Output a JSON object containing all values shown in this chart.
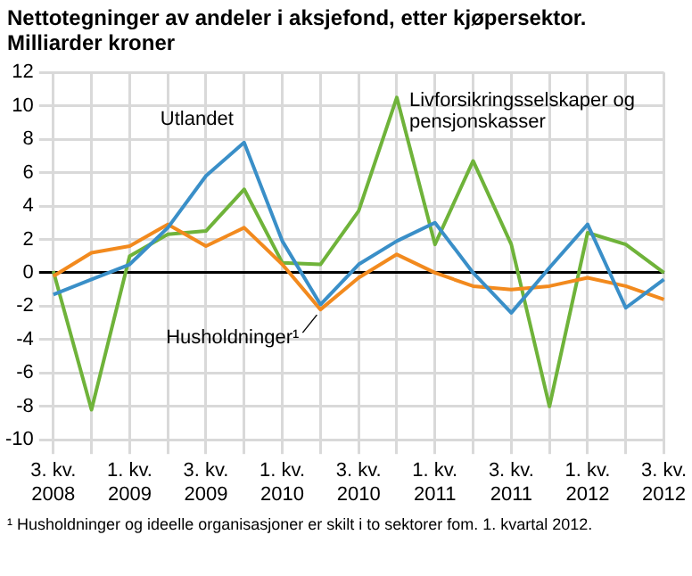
{
  "chart_data": {
    "type": "line",
    "title": "Nettotegninger av andeler i aksjefond, etter kjøpersektor. Milliarder kroner",
    "categories": [
      "3. kv. 2008",
      null,
      "1. kv. 2009",
      null,
      "3. kv. 2009",
      null,
      "1. kv. 2010",
      null,
      "3. kv. 2010",
      null,
      "1. kv. 2011",
      null,
      "3. kv. 2011",
      null,
      "1. kv. 2012",
      null,
      "3. kv. 2012"
    ],
    "series": [
      {
        "name": "Utlandet",
        "color": "#3a8fc8",
        "values": [
          -1.3,
          -0.4,
          0.5,
          2.7,
          5.8,
          7.8,
          1.9,
          -1.9,
          0.5,
          1.9,
          3.0,
          0,
          -2.4,
          0.3,
          2.9,
          -2.1,
          -0.4
        ]
      },
      {
        "name": "Husholdninger¹",
        "color": "#f28a1e",
        "values": [
          -0.2,
          1.2,
          1.6,
          2.9,
          1.6,
          2.7,
          0.5,
          -2.2,
          -0.3,
          1.1,
          0,
          -0.8,
          -1.0,
          -0.8,
          -0.3,
          -0.8,
          -1.6
        ]
      },
      {
        "name": "Livforsikringsselskaper og pensjonskasser",
        "color": "#6fb33a",
        "values": [
          0.1,
          -8.2,
          1.0,
          2.3,
          2.5,
          5.0,
          0.6,
          0.5,
          3.7,
          10.5,
          1.7,
          6.7,
          1.7,
          -8.0,
          2.4,
          1.7,
          0
        ]
      }
    ],
    "ylim": [
      -10,
      12
    ],
    "yticks": [
      -10,
      -8,
      -6,
      -4,
      -2,
      0,
      2,
      4,
      6,
      8,
      10,
      12
    ],
    "grid": true,
    "legend": false,
    "marker": "none",
    "line_style": "solid",
    "annotations": [
      "¹ Husholdninger og ideelle organisasjoner er skilt i to sektorer fom. 1. kvartal 2012."
    ]
  }
}
